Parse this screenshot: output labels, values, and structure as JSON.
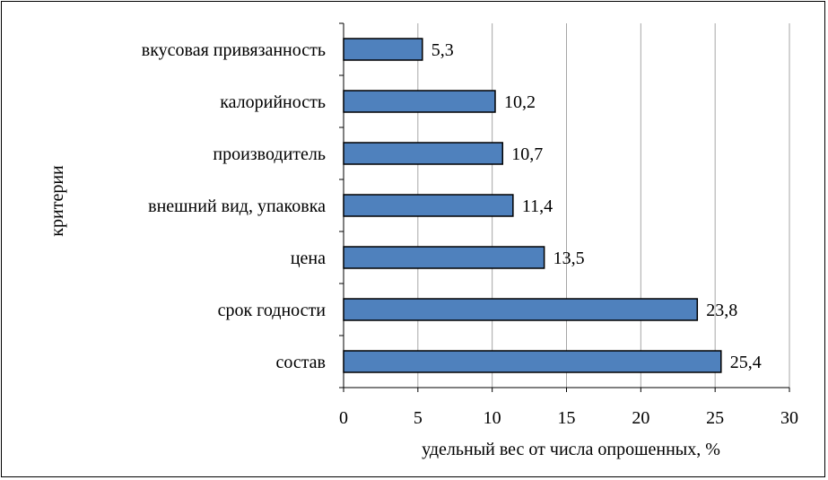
{
  "chart_data": {
    "type": "bar",
    "orientation": "horizontal",
    "categories": [
      "вкусовая привязанность",
      "калорийность",
      "производитель",
      "внешний вид, упаковка",
      "цена",
      "срок годности",
      "состав"
    ],
    "values": [
      5.3,
      10.2,
      10.7,
      11.4,
      13.5,
      23.8,
      25.4
    ],
    "data_labels": [
      "5,3",
      "10,2",
      "10,7",
      "11,4",
      "13,5",
      "23,8",
      "25,4"
    ],
    "xlabel": "удельный вес от числа опрошенных, %",
    "ylabel": "критерии",
    "xlim": [
      0,
      30
    ],
    "xticks": [
      0,
      5,
      10,
      15,
      20,
      25,
      30
    ],
    "xtick_labels": [
      "0",
      "5",
      "10",
      "15",
      "20",
      "25",
      "30"
    ],
    "grid": "vertical",
    "legend": "none",
    "bar_color": "#4f81bd",
    "bar_edge_color": "#000000",
    "grid_color": "#a6a6a6"
  }
}
